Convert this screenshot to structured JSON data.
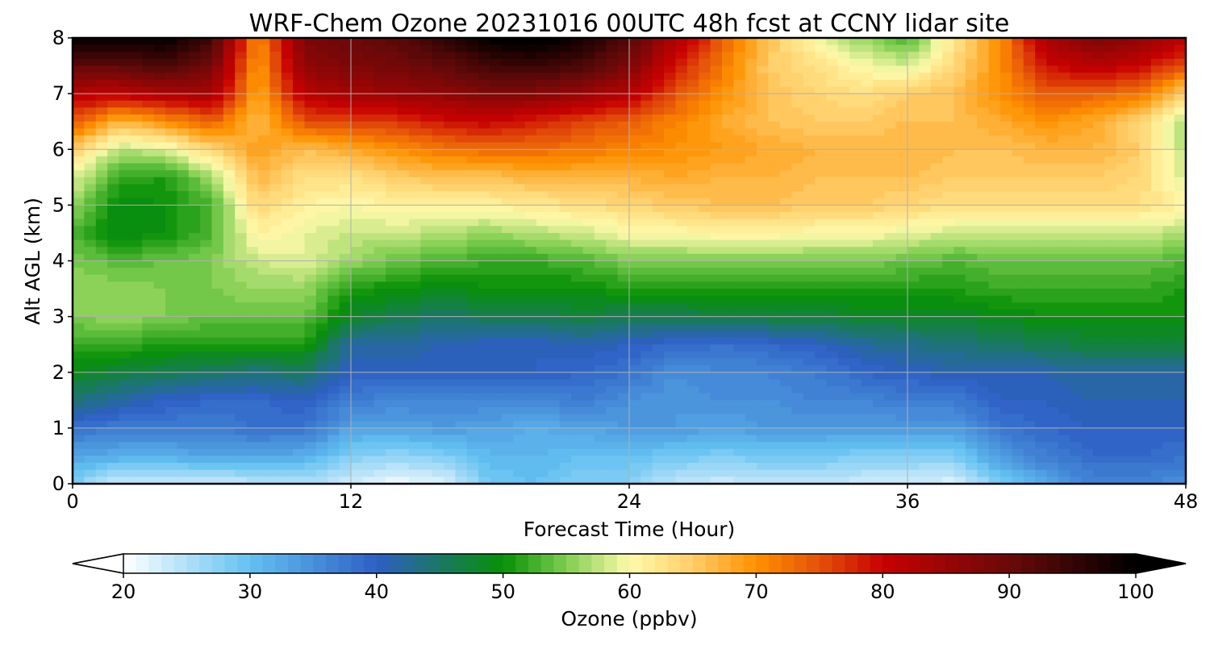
{
  "chart_data": {
    "type": "heatmap",
    "title": "WRF-Chem Ozone  20231016 00UTC 48h fcst at CCNY lidar site",
    "xlabel": "Forecast Time (Hour)",
    "ylabel": "Alt AGL (km)",
    "xlim": [
      0,
      48
    ],
    "ylim": [
      0,
      8
    ],
    "xticks": [
      0,
      12,
      24,
      36,
      48
    ],
    "yticks": [
      0,
      1,
      2,
      3,
      4,
      5,
      6,
      7,
      8
    ],
    "grid": true,
    "x": [
      0,
      2,
      4,
      6,
      8,
      10,
      12,
      14,
      16,
      18,
      20,
      22,
      24,
      26,
      28,
      30,
      32,
      34,
      36,
      38,
      40,
      42,
      44,
      46,
      48
    ],
    "y": [
      0,
      0.5,
      1,
      1.5,
      2,
      2.5,
      3,
      3.5,
      4,
      4.5,
      5,
      5.5,
      6,
      6.5,
      7,
      7.5,
      8
    ],
    "z": [
      [
        28,
        23,
        23,
        23,
        24,
        25,
        23,
        21,
        22,
        29,
        30,
        28,
        28,
        24,
        23,
        24,
        24,
        23,
        23,
        22,
        28,
        33,
        36,
        36,
        35
      ],
      [
        33,
        32,
        32,
        33,
        33,
        32,
        28,
        27,
        28,
        31,
        31,
        30,
        30,
        29,
        28,
        29,
        29,
        28,
        28,
        28,
        34,
        37,
        39,
        39,
        38
      ],
      [
        38,
        37,
        37,
        37,
        38,
        38,
        33,
        33,
        34,
        33,
        32,
        33,
        34,
        34,
        33,
        34,
        34,
        34,
        34,
        34,
        38,
        39,
        40,
        40,
        40
      ],
      [
        44,
        42,
        40,
        39,
        39,
        40,
        37,
        36,
        36,
        36,
        36,
        37,
        35,
        34,
        35,
        35,
        36,
        36,
        37,
        37,
        40,
        40,
        41,
        41,
        41
      ],
      [
        49,
        47,
        46,
        45,
        44,
        45,
        40,
        40,
        40,
        40,
        40,
        39,
        38,
        35,
        36,
        36,
        37,
        39,
        40,
        41,
        41,
        41,
        42,
        42,
        42
      ],
      [
        52,
        52,
        51,
        51,
        51,
        51,
        42,
        42,
        41,
        40,
        40,
        41,
        40,
        39,
        38,
        39,
        40,
        42,
        43,
        44,
        45,
        46,
        47,
        47,
        47
      ],
      [
        55,
        56,
        55,
        54,
        54,
        54,
        48,
        46,
        45,
        46,
        46,
        47,
        46,
        46,
        47,
        47,
        47,
        48,
        48,
        48,
        49,
        50,
        50,
        50,
        50
      ],
      [
        56,
        56,
        55,
        55,
        56,
        56,
        51,
        50,
        49,
        50,
        50,
        50,
        51,
        51,
        51,
        51,
        51,
        51,
        51,
        51,
        52,
        52,
        52,
        52,
        51
      ],
      [
        55,
        53,
        54,
        55,
        58,
        59,
        56,
        54,
        53,
        52,
        52,
        53,
        55,
        55,
        55,
        55,
        55,
        55,
        54,
        53,
        54,
        54,
        54,
        54,
        53
      ],
      [
        53,
        49,
        50,
        53,
        61,
        59,
        58,
        58,
        57,
        56,
        57,
        58,
        60,
        60,
        61,
        61,
        60,
        60,
        59,
        58,
        58,
        58,
        58,
        58,
        57
      ],
      [
        56,
        49,
        50,
        53,
        64,
        61,
        60,
        61,
        61,
        61,
        62,
        63,
        64,
        65,
        66,
        66,
        65,
        65,
        64,
        63,
        63,
        63,
        63,
        63,
        61
      ],
      [
        59,
        52,
        51,
        56,
        67,
        63,
        63,
        65,
        66,
        66,
        67,
        67,
        67,
        68,
        67,
        67,
        66,
        66,
        66,
        65,
        65,
        65,
        65,
        64,
        58
      ],
      [
        65,
        57,
        59,
        64,
        69,
        66,
        68,
        70,
        72,
        73,
        73,
        72,
        71,
        70,
        69,
        68,
        67,
        67,
        67,
        66,
        66,
        67,
        67,
        65,
        57
      ],
      [
        75,
        67,
        70,
        74,
        66,
        75,
        76,
        77,
        79,
        80,
        78,
        76,
        74,
        71,
        68,
        66,
        65,
        65,
        66,
        66,
        68,
        70,
        68,
        64,
        56
      ],
      [
        82,
        81,
        83,
        84,
        68,
        82,
        84,
        85,
        86,
        88,
        87,
        85,
        82,
        75,
        70,
        66,
        64,
        63,
        65,
        66,
        70,
        74,
        74,
        72,
        64
      ],
      [
        91,
        91,
        93,
        89,
        69,
        86,
        88,
        89,
        91,
        94,
        95,
        93,
        88,
        79,
        72,
        65,
        63,
        60,
        58,
        64,
        70,
        79,
        82,
        80,
        75
      ],
      [
        100,
        99,
        100,
        94,
        70,
        88,
        90,
        92,
        95,
        100,
        101,
        98,
        92,
        83,
        74,
        66,
        60,
        56,
        53,
        62,
        70,
        84,
        88,
        86,
        82
      ]
    ],
    "colorbar": {
      "label": "Ozone  (ppbv)",
      "min": 20,
      "max": 100,
      "ticks": [
        20,
        30,
        40,
        50,
        60,
        70,
        80,
        90,
        100
      ],
      "extend": "both",
      "levels": 80
    },
    "colormap_stops": [
      [
        20,
        "#ffffff"
      ],
      [
        30,
        "#63c1f1"
      ],
      [
        40,
        "#2e5fc5"
      ],
      [
        50,
        "#079005"
      ],
      [
        55,
        "#7fcd50"
      ],
      [
        60,
        "#fffbac"
      ],
      [
        65,
        "#ffcd68"
      ],
      [
        70,
        "#ff9100"
      ],
      [
        75,
        "#e4510a"
      ],
      [
        80,
        "#c80101"
      ],
      [
        90,
        "#6a0909"
      ],
      [
        100,
        "#000000"
      ]
    ]
  }
}
